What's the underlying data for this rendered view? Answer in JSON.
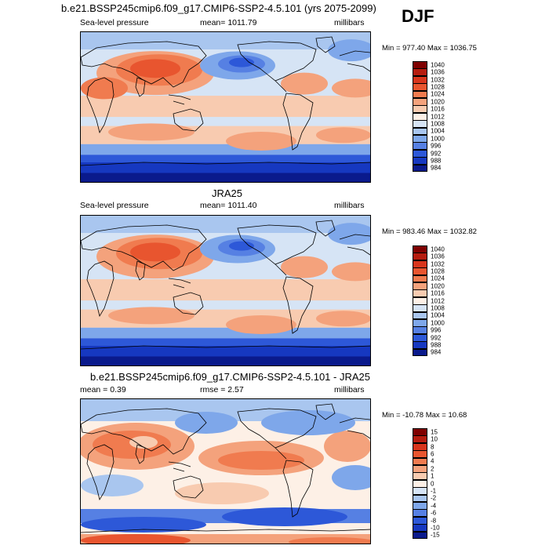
{
  "season": "DJF",
  "panels": [
    {
      "title": "b.e21.BSSP245cmip6.f09_g17.CMIP6-SSP2-4.5.101 (yrs 2075-2099)",
      "left_label": "Sea-level pressure",
      "center_label": "mean= 1011.79",
      "right_label": "millibars",
      "minmax": "Min = 977.40 Max = 1036.75"
    },
    {
      "title": "JRA25",
      "left_label": "Sea-level pressure",
      "center_label": "mean= 1011.40",
      "right_label": "millibars",
      "minmax": "Min = 983.46 Max = 1032.82"
    },
    {
      "title": "b.e21.BSSP245cmip6.f09_g17.CMIP6-SSP2-4.5.101 - JRA25",
      "left_label": "mean =   0.39",
      "center_label": "rmse =   2.57",
      "right_label": "millibars",
      "minmax": "Min = -10.78 Max =  10.68"
    }
  ],
  "chart_data": [
    {
      "type": "heatmap",
      "title": "b.e21.BSSP245cmip6.f09_g17.CMIP6-SSP2-4.5.101 (yrs 2075-2099)",
      "variable": "Sea-level pressure",
      "units": "millibars",
      "mean": 1011.79,
      "min": 977.4,
      "max": 1036.75,
      "colorbar_levels": [
        1040,
        1036,
        1032,
        1028,
        1024,
        1020,
        1016,
        1012,
        1008,
        1004,
        1000,
        996,
        992,
        988,
        984
      ],
      "colorbar_colors": [
        "#7f0000",
        "#b51c0f",
        "#d8351c",
        "#e8552f",
        "#f07b4f",
        "#f4a27c",
        "#f8cbb0",
        "#fdf0e6",
        "#d6e4f5",
        "#a9c6ef",
        "#7ea7ea",
        "#5680e3",
        "#2d58d8",
        "#1638c0",
        "#0a1a8c"
      ]
    },
    {
      "type": "heatmap",
      "title": "JRA25",
      "variable": "Sea-level pressure",
      "units": "millibars",
      "mean": 1011.4,
      "min": 983.46,
      "max": 1032.82,
      "colorbar_levels": [
        1040,
        1036,
        1032,
        1028,
        1024,
        1020,
        1016,
        1012,
        1008,
        1004,
        1000,
        996,
        992,
        988,
        984
      ],
      "colorbar_colors": [
        "#7f0000",
        "#b51c0f",
        "#d8351c",
        "#e8552f",
        "#f07b4f",
        "#f4a27c",
        "#f8cbb0",
        "#fdf0e6",
        "#d6e4f5",
        "#a9c6ef",
        "#7ea7ea",
        "#5680e3",
        "#2d58d8",
        "#1638c0",
        "#0a1a8c"
      ]
    },
    {
      "type": "heatmap",
      "title": "b.e21.BSSP245cmip6.f09_g17.CMIP6-SSP2-4.5.101 - JRA25",
      "units": "millibars",
      "mean": 0.39,
      "rmse": 2.57,
      "min": -10.78,
      "max": 10.68,
      "colorbar_levels": [
        15,
        10,
        8,
        6,
        4,
        2,
        1,
        0,
        -1,
        -2,
        -4,
        -6,
        -8,
        -10,
        -15
      ],
      "colorbar_colors": [
        "#7f0000",
        "#b51c0f",
        "#d8351c",
        "#e8552f",
        "#f07b4f",
        "#f4a27c",
        "#f8cbb0",
        "#fdf0e6",
        "#d6e4f5",
        "#a9c6ef",
        "#7ea7ea",
        "#5680e3",
        "#2d58d8",
        "#1638c0",
        "#0a1a8c"
      ]
    }
  ]
}
